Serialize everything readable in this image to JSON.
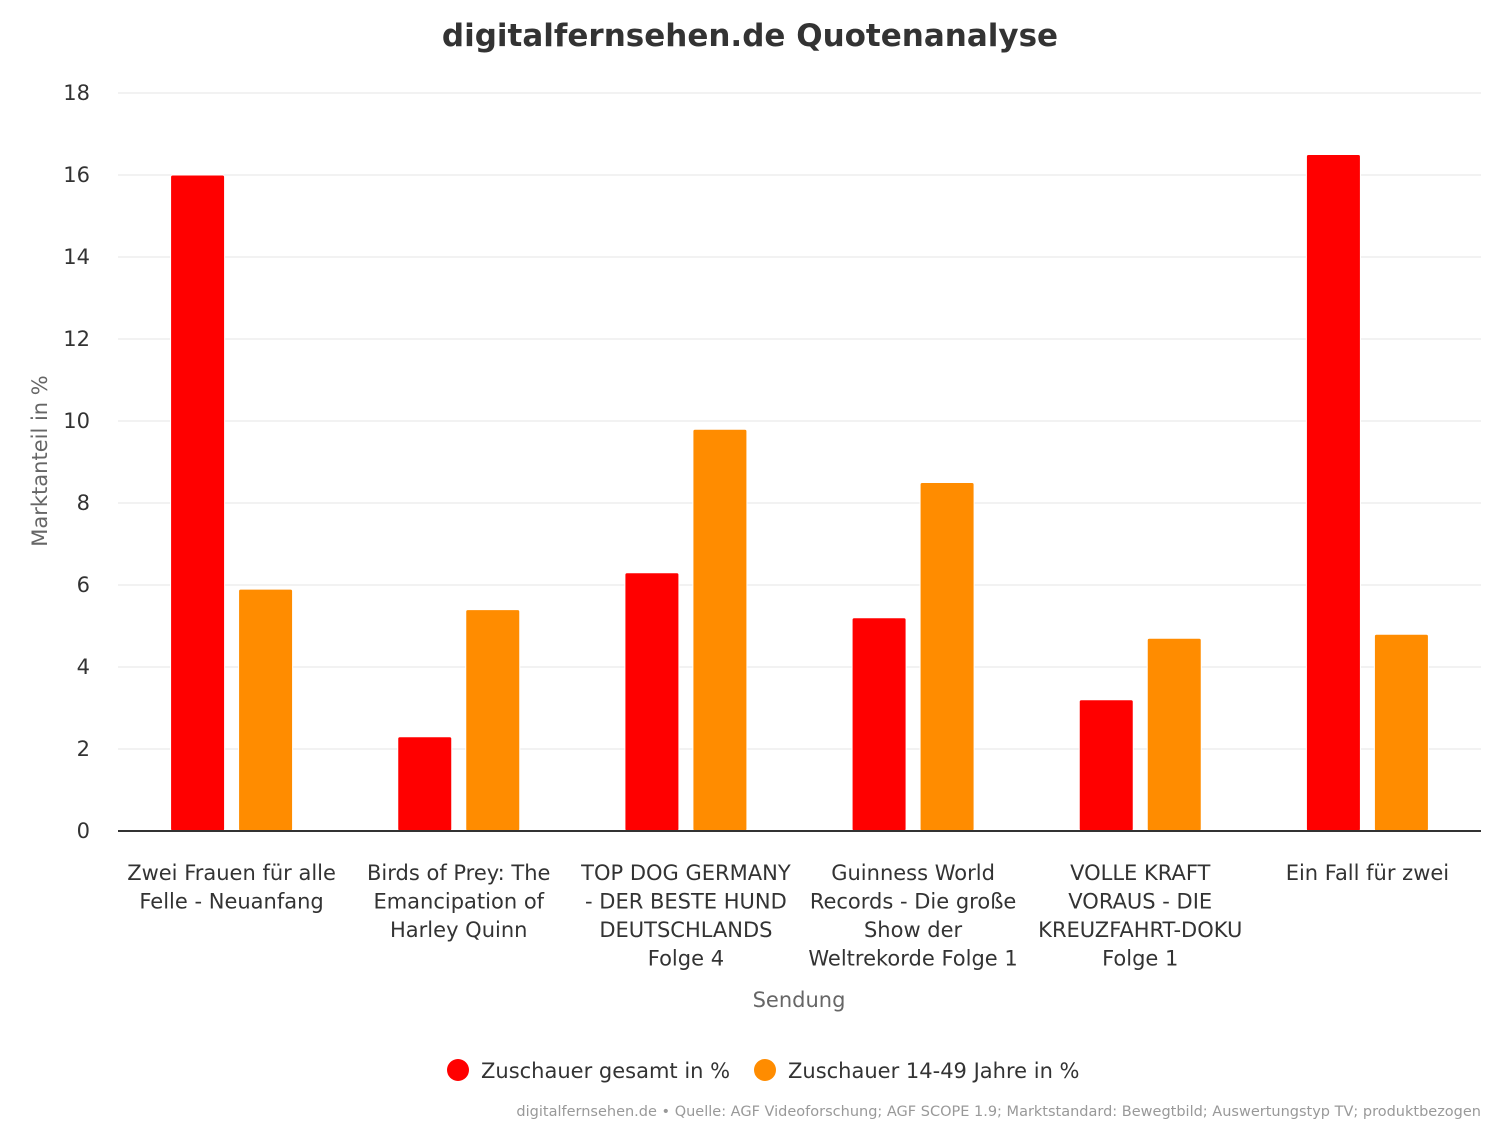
{
  "chart_data": {
    "type": "bar",
    "title": "digitalfernsehen.de Quotenanalyse",
    "xlabel": "Sendung",
    "ylabel": "Marktanteil in %",
    "ylim": [
      0,
      18
    ],
    "yticks": [
      0,
      2,
      4,
      6,
      8,
      10,
      12,
      14,
      16,
      18
    ],
    "grid": true,
    "legend_position": "bottom",
    "categories": [
      [
        "Zwei Frauen für alle",
        "Felle - Neuanfang"
      ],
      [
        "Birds of Prey: The",
        "Emancipation of",
        "Harley Quinn"
      ],
      [
        "TOP DOG GERMANY",
        "- DER BESTE HUND",
        "DEUTSCHLANDS",
        "Folge 4"
      ],
      [
        "Guinness World",
        "Records - Die große",
        "Show der",
        "Weltrekorde Folge 1"
      ],
      [
        "VOLLE KRAFT",
        "VORAUS - DIE",
        "KREUZFAHRT-DOKU",
        "Folge 1"
      ],
      [
        "Ein Fall für zwei"
      ]
    ],
    "series": [
      {
        "name": "Zuschauer gesamt in %",
        "color": "#ff0000",
        "values": [
          16.0,
          2.3,
          6.3,
          5.2,
          3.2,
          16.5
        ]
      },
      {
        "name": "Zuschauer 14-49 Jahre in %",
        "color": "#ff8c00",
        "values": [
          5.9,
          5.4,
          9.8,
          8.5,
          4.7,
          4.8
        ]
      }
    ],
    "credits": "digitalfernsehen.de • Quelle: AGF Videoforschung; AGF SCOPE 1.9; Marktstandard: Bewegtbild; Auswertungstyp TV; produktbezogen"
  }
}
